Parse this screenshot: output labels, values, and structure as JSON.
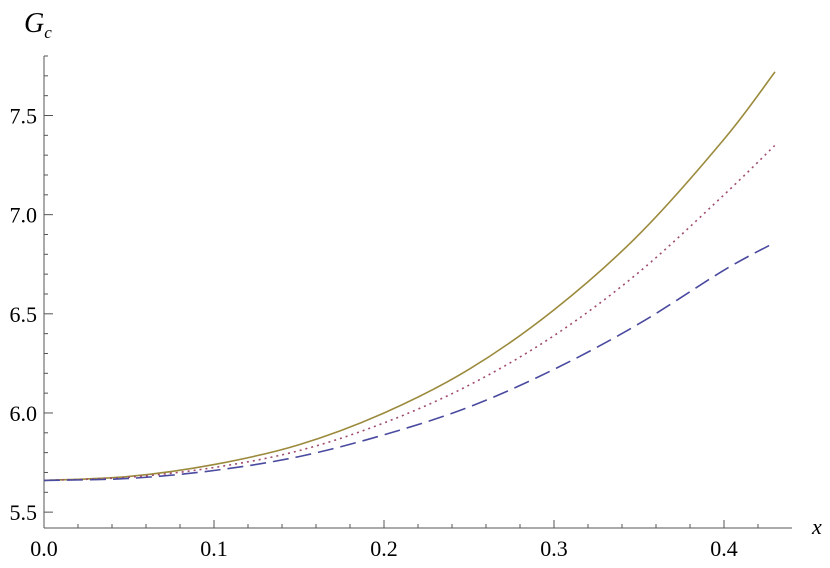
{
  "chart_data": {
    "type": "line",
    "xlabel": "x",
    "ylabel": "G",
    "ylabel_sub": "c",
    "xlim": [
      0,
      0.43
    ],
    "ylim": [
      5.42,
      7.8
    ],
    "x_axis_at_y": 5.42,
    "x_ticks": [
      0.0,
      0.1,
      0.2,
      0.3,
      0.4
    ],
    "x_tick_labels": [
      "0.0",
      "0.1",
      "0.2",
      "0.3",
      "0.4"
    ],
    "x_minor_step": 0.02,
    "y_ticks": [
      5.5,
      6.0,
      6.5,
      7.0,
      7.5
    ],
    "y_tick_labels": [
      "5.5",
      "6.0",
      "6.5",
      "7.0",
      "7.5"
    ],
    "y_minor_step": 0.1,
    "grid": false,
    "x": [
      0.0,
      0.05,
      0.1,
      0.15,
      0.2,
      0.25,
      0.3,
      0.35,
      0.4,
      0.43
    ],
    "series": [
      {
        "style": "solid",
        "color": "#9b8a3c",
        "values": [
          5.66,
          5.68,
          5.74,
          5.84,
          6.0,
          6.22,
          6.52,
          6.9,
          7.38,
          7.72
        ]
      },
      {
        "style": "dotted",
        "color": "#a04a6e",
        "values": [
          5.66,
          5.676,
          5.725,
          5.81,
          5.95,
          6.14,
          6.39,
          6.71,
          7.1,
          7.35
        ]
      },
      {
        "style": "dashed",
        "color": "#4a4aa0",
        "values": [
          5.66,
          5.67,
          5.71,
          5.78,
          5.89,
          6.03,
          6.22,
          6.45,
          6.72,
          6.86
        ]
      }
    ]
  }
}
